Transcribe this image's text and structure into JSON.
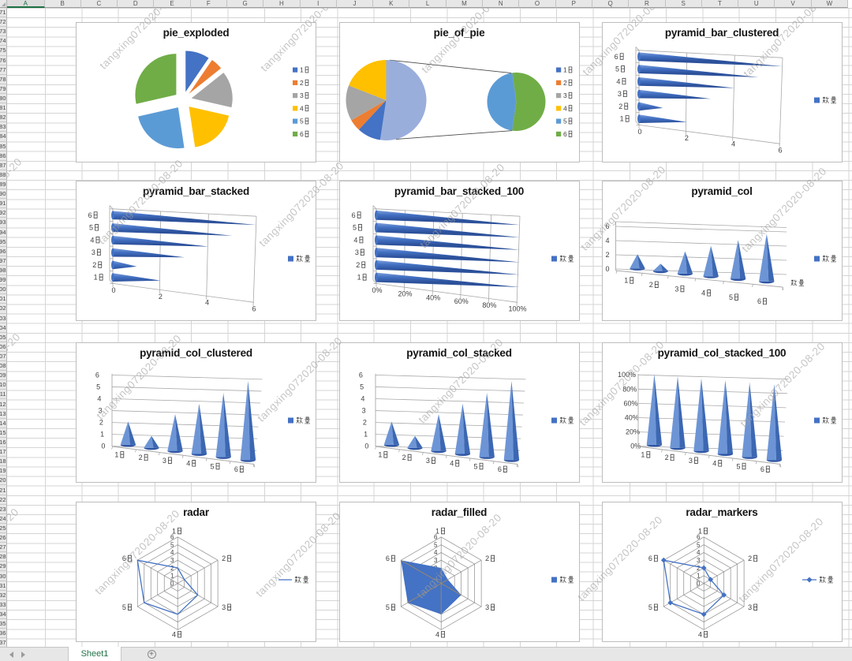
{
  "sheet": {
    "columns": [
      "A",
      "B",
      "C",
      "D",
      "E",
      "F",
      "G",
      "H",
      "I",
      "J",
      "K",
      "L",
      "M",
      "N",
      "O",
      "P",
      "Q",
      "R",
      "S",
      "T",
      "U",
      "V",
      "W"
    ],
    "selected_column": "A",
    "first_row": 71,
    "last_row": 137,
    "tab_label": "Sheet1",
    "watermark_text": "tangxing072020-08-20"
  },
  "palette": {
    "series": [
      "#4472C4",
      "#ED7D31",
      "#A5A5A5",
      "#FFC000",
      "#5B9BD5",
      "#70AD47"
    ],
    "other_slice": "#9AAEDC",
    "bar_main": "#4472C4",
    "bar_light": "#7FA0DB",
    "bar_dark": "#2C519B",
    "axis_text": "#404040",
    "grid_line": "#A9A9A9",
    "radar_web": "#8C8C8C",
    "connector": "#4a4a4a"
  },
  "chart_data": [
    {
      "type": "pie",
      "variant": "exploded",
      "title": "pie_exploded",
      "categories": [
        "1日",
        "2日",
        "3日",
        "4日",
        "5日",
        "6日"
      ],
      "series": [
        {
          "name": "数量",
          "values": [
            2,
            1,
            3,
            4,
            5,
            6
          ]
        }
      ],
      "legend_position": "right"
    },
    {
      "type": "pie_of_pie",
      "title": "pie_of_pie",
      "categories": [
        "1日",
        "2日",
        "3日",
        "4日",
        "5日",
        "6日"
      ],
      "series": [
        {
          "name": "数量",
          "values": [
            2,
            1,
            3,
            4,
            5,
            6
          ]
        }
      ],
      "secondary_categories": [
        "5日",
        "6日"
      ],
      "legend_position": "right"
    },
    {
      "type": "bar3d_pyramid",
      "variant": "clustered",
      "title": "pyramid_bar_clustered",
      "categories": [
        "1日",
        "2日",
        "3日",
        "4日",
        "5日",
        "6日"
      ],
      "series": [
        {
          "name": "数量",
          "values": [
            2,
            1,
            3,
            4,
            5,
            6
          ]
        }
      ],
      "xlim": [
        0,
        6
      ],
      "xticks": [
        "0",
        "2",
        "4",
        "6"
      ],
      "legend_position": "right"
    },
    {
      "type": "bar3d_pyramid",
      "variant": "stacked",
      "title": "pyramid_bar_stacked",
      "categories": [
        "1日",
        "2日",
        "3日",
        "4日",
        "5日",
        "6日"
      ],
      "series": [
        {
          "name": "数量",
          "values": [
            2,
            1,
            3,
            4,
            5,
            6
          ]
        }
      ],
      "xlim": [
        0,
        6
      ],
      "xticks": [
        "0",
        "2",
        "4",
        "6"
      ],
      "legend_position": "right"
    },
    {
      "type": "bar3d_pyramid",
      "variant": "stacked_100",
      "title": "pyramid_bar_stacked_100",
      "categories": [
        "1日",
        "2日",
        "3日",
        "4日",
        "5日",
        "6日"
      ],
      "series": [
        {
          "name": "数量",
          "values": [
            2,
            1,
            3,
            4,
            5,
            6
          ]
        }
      ],
      "xlim": [
        0,
        1
      ],
      "xticks": [
        "0%",
        "20%",
        "40%",
        "60%",
        "80%",
        "100%"
      ],
      "legend_position": "right"
    },
    {
      "type": "col3d_pyramid",
      "variant": "3d",
      "title": "pyramid_col",
      "categories": [
        "1日",
        "2日",
        "3日",
        "4日",
        "5日",
        "6日"
      ],
      "series": [
        {
          "name": "数量",
          "values": [
            2,
            1,
            3,
            4,
            5,
            6
          ]
        }
      ],
      "ylim": [
        0,
        6
      ],
      "yticks": [
        "0",
        "2",
        "4",
        "6"
      ],
      "depth_axis_label": "数量",
      "legend_position": "right"
    },
    {
      "type": "col3d_pyramid",
      "variant": "clustered",
      "title": "pyramid_col_clustered",
      "categories": [
        "1日",
        "2日",
        "3日",
        "4日",
        "5日",
        "6日"
      ],
      "series": [
        {
          "name": "数量",
          "values": [
            2,
            1,
            3,
            4,
            5,
            6
          ]
        }
      ],
      "ylim": [
        0,
        6
      ],
      "yticks": [
        "0",
        "1",
        "2",
        "3",
        "4",
        "5",
        "6"
      ],
      "legend_position": "right"
    },
    {
      "type": "col3d_pyramid",
      "variant": "stacked",
      "title": "pyramid_col_stacked",
      "categories": [
        "1日",
        "2日",
        "3日",
        "4日",
        "5日",
        "6日"
      ],
      "series": [
        {
          "name": "数量",
          "values": [
            2,
            1,
            3,
            4,
            5,
            6
          ]
        }
      ],
      "ylim": [
        0,
        6
      ],
      "yticks": [
        "0",
        "1",
        "2",
        "3",
        "4",
        "5",
        "6"
      ],
      "legend_position": "right"
    },
    {
      "type": "col3d_pyramid",
      "variant": "stacked_100",
      "title": "pyramid_col_stacked_100",
      "categories": [
        "1日",
        "2日",
        "3日",
        "4日",
        "5日",
        "6日"
      ],
      "series": [
        {
          "name": "数量",
          "values": [
            2,
            1,
            3,
            4,
            5,
            6
          ]
        }
      ],
      "ylim": [
        0,
        1
      ],
      "yticks": [
        "0%",
        "20%",
        "40%",
        "60%",
        "80%",
        "100%"
      ],
      "legend_position": "right"
    },
    {
      "type": "radar",
      "variant": "line",
      "title": "radar",
      "categories": [
        "1日",
        "2日",
        "3日",
        "4日",
        "5日",
        "6日"
      ],
      "series": [
        {
          "name": "数量",
          "values": [
            2,
            1,
            3,
            4,
            5,
            6
          ]
        }
      ],
      "rlim": [
        0,
        6
      ],
      "rticks": [
        "0",
        "1",
        "2",
        "3",
        "4",
        "5",
        "6"
      ],
      "legend_position": "right"
    },
    {
      "type": "radar",
      "variant": "filled",
      "title": "radar_filled",
      "categories": [
        "1日",
        "2日",
        "3日",
        "4日",
        "5日",
        "6日"
      ],
      "series": [
        {
          "name": "数量",
          "values": [
            2,
            1,
            3,
            4,
            5,
            6
          ]
        }
      ],
      "rlim": [
        0,
        6
      ],
      "rticks": [
        "0",
        "1",
        "2",
        "3",
        "4",
        "5",
        "6"
      ],
      "legend_position": "right"
    },
    {
      "type": "radar",
      "variant": "markers",
      "title": "radar_markers",
      "categories": [
        "1日",
        "2日",
        "3日",
        "4日",
        "5日",
        "6日"
      ],
      "series": [
        {
          "name": "数量",
          "values": [
            2,
            1,
            3,
            4,
            5,
            6
          ]
        }
      ],
      "rlim": [
        0,
        6
      ],
      "rticks": [
        "0",
        "1",
        "2",
        "3",
        "4",
        "5",
        "6"
      ],
      "legend_position": "right"
    }
  ]
}
